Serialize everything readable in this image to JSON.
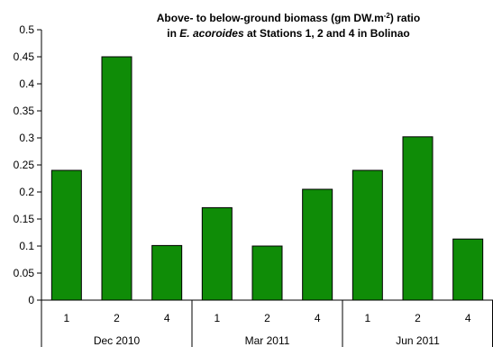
{
  "chart_data": {
    "type": "bar",
    "title_line1_pre": "Above- to below-ground biomass (gm DW.m",
    "title_line1_sup": "-2",
    "title_line1_post": ") ratio",
    "title_line2_pre": "in ",
    "title_line2_italic": "E. acoroides",
    "title_line2_post": " at Stations 1, 2 and 4 in Bolinao",
    "ylim": [
      0,
      0.5
    ],
    "yticks": [
      "0",
      "0.05",
      "0.1",
      "0.15",
      "0.2",
      "0.25",
      "0.3",
      "0.35",
      "0.4",
      "0.45",
      "0.5"
    ],
    "groups": [
      {
        "label": "Dec 2010",
        "categories": [
          "1",
          "2",
          "4"
        ],
        "values": [
          0.24,
          0.45,
          0.101
        ]
      },
      {
        "label": "Mar 2011",
        "categories": [
          "1",
          "2",
          "4"
        ],
        "values": [
          0.171,
          0.1,
          0.205
        ]
      },
      {
        "label": "Jun 2011",
        "categories": [
          "1",
          "2",
          "4"
        ],
        "values": [
          0.24,
          0.302,
          0.113
        ]
      }
    ],
    "bar_color": "#0f8c07",
    "grid": false,
    "legend": "none"
  }
}
